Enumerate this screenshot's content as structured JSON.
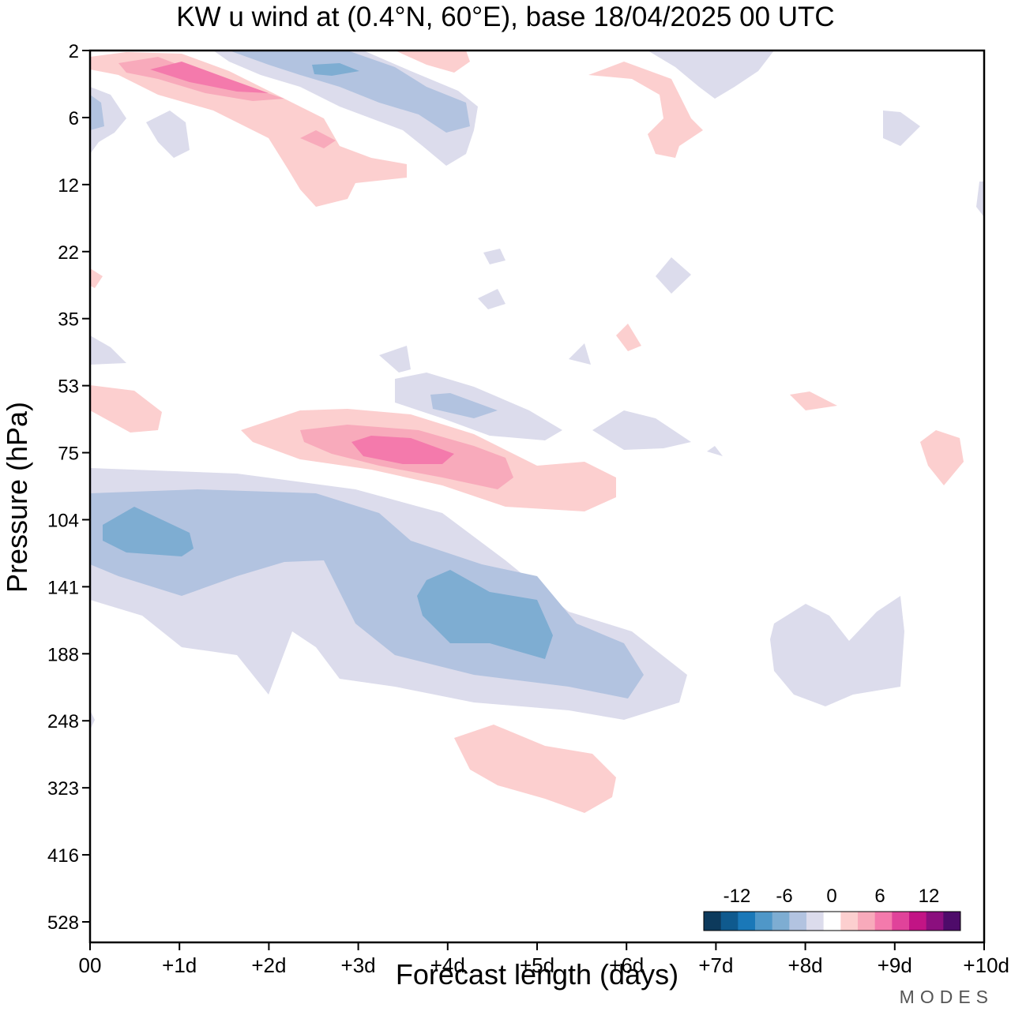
{
  "chart_data": {
    "type": "heatmap",
    "title": "KW u wind at (0.4°N, 60°E),  base 18/04/2025  00 UTC",
    "xlabel": "Forecast length (days)",
    "ylabel": "Pressure (hPa)",
    "x_ticks": [
      "00",
      "+1d",
      "+2d",
      "+3d",
      "+4d",
      "+5d",
      "+6d",
      "+7d",
      "+8d",
      "+9d",
      "+10d"
    ],
    "y_ticks": [
      "2",
      "6",
      "12",
      "22",
      "35",
      "53",
      "75",
      "104",
      "141",
      "188",
      "248",
      "323",
      "416",
      "528"
    ],
    "xlim": [
      0,
      10
    ],
    "y_scale": "log-pressure, inverted",
    "colorbar": {
      "tick_labels": [
        "-12",
        "-6",
        "0",
        "6",
        "12"
      ],
      "levels": [
        -15,
        -13.5,
        -12,
        -10.5,
        -9,
        -7.5,
        -6,
        -4.5,
        -3,
        -1.5,
        1.5,
        3,
        4.5,
        6,
        7.5,
        9,
        10.5,
        12,
        13.5,
        15
      ],
      "colors": [
        "#0d3a5c",
        "#0f5a8e",
        "#1a78b8",
        "#4f97c8",
        "#7eadd2",
        "#b2c3e0",
        "#dcdcec",
        "#ffffff",
        "#fccfcf",
        "#f8aabb",
        "#f47aac",
        "#e0439a",
        "#c21485",
        "#8b0f7e",
        "#4e0b6a"
      ]
    },
    "features": [
      {
        "day_start": 0.0,
        "day_end": 6.8,
        "p_top": 75,
        "p_bottom": 260,
        "peak_u": -8,
        "core_day": 4.2,
        "core_p": 160
      },
      {
        "day_start": 1.7,
        "day_end": 5.9,
        "p_top": 60,
        "p_bottom": 95,
        "peak_u": 8,
        "core_day": 3.4,
        "core_p": 72
      },
      {
        "day_start": 4.0,
        "day_end": 5.9,
        "p_top": 260,
        "p_bottom": 360,
        "peak_u": 3
      },
      {
        "day_start": 0.0,
        "day_end": 5.5,
        "p_top": 2,
        "p_bottom": 12,
        "peak_u": 9
      },
      {
        "day_start": 1.5,
        "day_end": 4.5,
        "p_top": 2,
        "p_bottom": 9,
        "peak_u": -9
      },
      {
        "day_start": 7.6,
        "day_end": 9.1,
        "p_top": 140,
        "p_bottom": 230,
        "peak_u": -3
      }
    ]
  },
  "brand": "MODES"
}
